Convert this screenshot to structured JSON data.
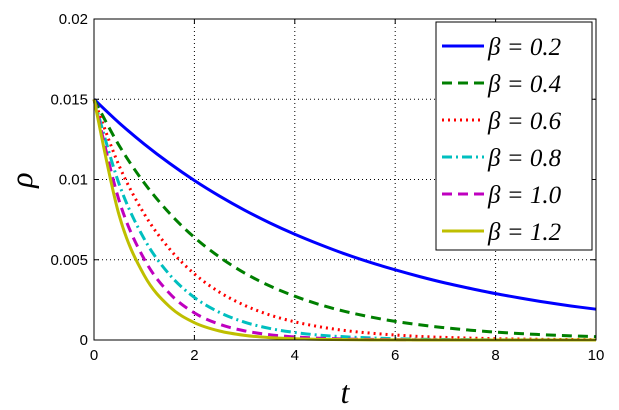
{
  "chart_data": {
    "type": "line",
    "title": "",
    "xlabel": "t",
    "ylabel": "ρ",
    "xlim": [
      0,
      10
    ],
    "ylim": [
      0,
      0.02
    ],
    "x_ticks": [
      "0",
      "2",
      "4",
      "6",
      "8",
      "10"
    ],
    "y_ticks": [
      "0",
      "0.005",
      "0.01",
      "0.015",
      "0.02"
    ],
    "grid": true,
    "legend_position": "top-right",
    "x": [
      0,
      0.5,
      1,
      1.5,
      2,
      2.5,
      3,
      3.5,
      4,
      4.5,
      5,
      5.5,
      6,
      6.5,
      7,
      7.5,
      8,
      8.5,
      9,
      9.5,
      10
    ],
    "series": [
      {
        "name": "β = 0.2",
        "color": "#0000ff",
        "dash": "solid",
        "values": [
          0.015,
          0.01353,
          0.01221,
          0.01102,
          0.00994,
          0.00897,
          0.00809,
          0.0073,
          0.00659,
          0.00595,
          0.00536,
          0.00484,
          0.00437,
          0.00394,
          0.00355,
          0.00321,
          0.00289,
          0.00261,
          0.00235,
          0.00212,
          0.00192
        ]
      },
      {
        "name": "β = 0.4",
        "color": "#007f00",
        "dash": "dashed",
        "values": [
          0.015,
          0.01212,
          0.00979,
          0.00791,
          0.00639,
          0.00517,
          0.00417,
          0.00337,
          0.00273,
          0.0022,
          0.00178,
          0.00144,
          0.00116,
          0.00094,
          0.00076,
          0.00061,
          0.00049,
          0.0004,
          0.00032,
          0.00026,
          0.00021
        ]
      },
      {
        "name": "β = 0.6",
        "color": "#ff0000",
        "dash": "dotted",
        "values": [
          0.015,
          0.01086,
          0.00786,
          0.00569,
          0.00412,
          0.00298,
          0.00216,
          0.00156,
          0.00113,
          0.00082,
          0.00059,
          0.00043,
          0.00031,
          0.00022,
          0.00016,
          0.00012,
          8e-05,
          6e-05,
          4e-05,
          3e-05,
          2e-05
        ]
      },
      {
        "name": "β = 0.8",
        "color": "#00bfbf",
        "dash": "dashdot",
        "values": [
          0.015,
          0.00972,
          0.0063,
          0.00409,
          0.00265,
          0.00172,
          0.00111,
          0.00072,
          0.00047,
          0.0003,
          0.0002,
          0.00013,
          8e-05,
          5e-05,
          3e-05,
          2e-05,
          1e-05,
          1e-05,
          1e-05,
          0.0,
          0.0
        ]
      },
      {
        "name": "β = 1.0",
        "color": "#bf00bf",
        "dash": "dashed",
        "values": [
          0.015,
          0.00869,
          0.00504,
          0.00292,
          0.00169,
          0.00098,
          0.00057,
          0.00033,
          0.00019,
          0.00011,
          6e-05,
          4e-05,
          2e-05,
          1e-05,
          1e-05,
          0.0,
          0.0,
          0.0,
          0.0,
          0.0,
          0.0
        ]
      },
      {
        "name": "β = 1.2",
        "color": "#bfbf00",
        "dash": "solid",
        "values": [
          0.015,
          0.00778,
          0.00403,
          0.00209,
          0.00108,
          0.00056,
          0.00029,
          0.00015,
          8e-05,
          4e-05,
          2e-05,
          1e-05,
          1e-05,
          0.0,
          0.0,
          0.0,
          0.0,
          0.0,
          0.0,
          0.0,
          0.0
        ]
      }
    ]
  }
}
